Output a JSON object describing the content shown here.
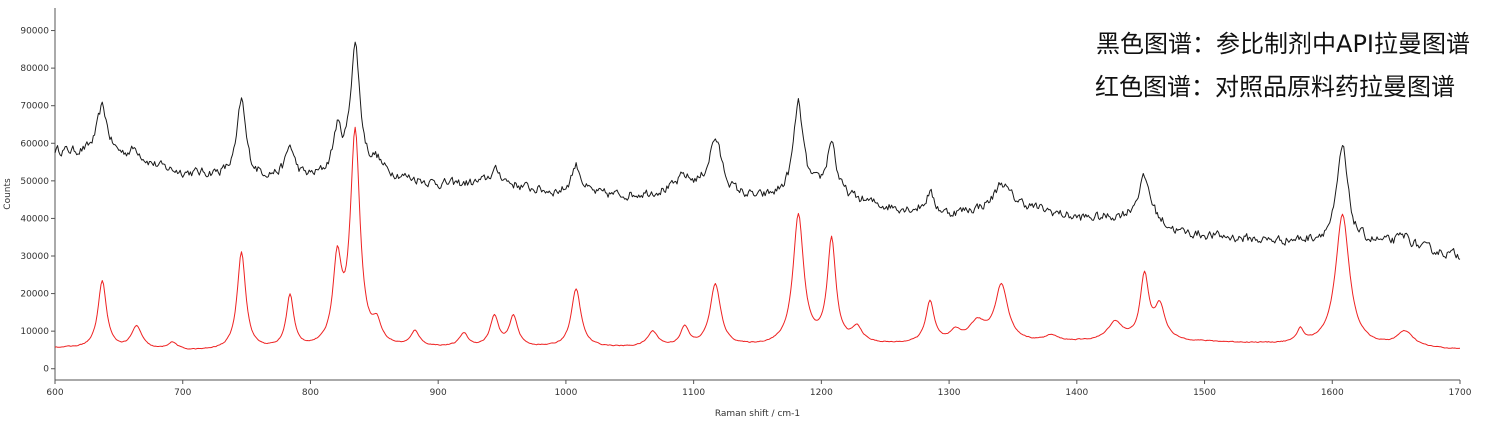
{
  "chart_data": {
    "type": "line",
    "xlabel": "Raman shift / cm-1",
    "ylabel": "Counts",
    "xlim": [
      600,
      1700
    ],
    "ylim": [
      -3000,
      96000
    ],
    "xticks": [
      "600",
      "700",
      "800",
      "900",
      "1000",
      "1100",
      "1200",
      "1300",
      "1400",
      "1500",
      "1600",
      "1700"
    ],
    "yticks": [
      "0",
      "10000",
      "20000",
      "30000",
      "40000",
      "50000",
      "60000",
      "70000",
      "80000",
      "90000"
    ],
    "grid": false,
    "legend_position": "top-right",
    "annotations": [
      "黑色图谱：参比制剂中API拉曼图谱",
      "红色图谱：对照品原料药拉曼图谱"
    ],
    "series": [
      {
        "color": "#1a1a1a",
        "noise": 2000,
        "baseline": [
          [
            600,
            58000
          ],
          [
            650,
            56000
          ],
          [
            700,
            52000
          ],
          [
            760,
            51000
          ],
          [
            800,
            50500
          ],
          [
            850,
            52000
          ],
          [
            900,
            49000
          ],
          [
            950,
            49000
          ],
          [
            1000,
            46000
          ],
          [
            1050,
            46000
          ],
          [
            1100,
            48000
          ],
          [
            1150,
            45000
          ],
          [
            1200,
            47000
          ],
          [
            1250,
            43000
          ],
          [
            1300,
            41000
          ],
          [
            1350,
            44000
          ],
          [
            1400,
            40000
          ],
          [
            1450,
            40000
          ],
          [
            1480,
            36000
          ],
          [
            1550,
            34000
          ],
          [
            1600,
            34000
          ],
          [
            1650,
            33000
          ],
          [
            1700,
            30000
          ]
        ],
        "peaks": [
          [
            637,
            13000,
            5
          ],
          [
            663,
            3000,
            6
          ],
          [
            746,
            20000,
            4
          ],
          [
            784,
            8000,
            4
          ],
          [
            821,
            11000,
            4
          ],
          [
            835,
            34000,
            4.5
          ],
          [
            852,
            2500,
            4
          ],
          [
            945,
            3500,
            6
          ],
          [
            1008,
            8000,
            5
          ],
          [
            1092,
            3000,
            5
          ],
          [
            1117,
            14000,
            6
          ],
          [
            1182,
            24000,
            4.5
          ],
          [
            1208,
            14000,
            4
          ],
          [
            1285,
            5000,
            4
          ],
          [
            1341,
            6000,
            6
          ],
          [
            1453,
            11000,
            6
          ],
          [
            1608,
            25000,
            5
          ],
          [
            1657,
            2500,
            6
          ]
        ]
      },
      {
        "color": "#ee2222",
        "noise": 200,
        "baseline": [
          [
            600,
            5500
          ],
          [
            700,
            4500
          ],
          [
            800,
            5000
          ],
          [
            900,
            5500
          ],
          [
            1000,
            5500
          ],
          [
            1100,
            5500
          ],
          [
            1200,
            6000
          ],
          [
            1300,
            6500
          ],
          [
            1400,
            7000
          ],
          [
            1500,
            7000
          ],
          [
            1600,
            6000
          ],
          [
            1700,
            5000
          ]
        ],
        "peaks": [
          [
            637,
            18000,
            4
          ],
          [
            664,
            6000,
            5
          ],
          [
            692,
            2000,
            5
          ],
          [
            746,
            26000,
            4
          ],
          [
            784,
            14000,
            3.5
          ],
          [
            821,
            22000,
            4
          ],
          [
            835,
            57000,
            4.5
          ],
          [
            852,
            5000,
            4
          ],
          [
            882,
            4000,
            4
          ],
          [
            920,
            3500,
            4
          ],
          [
            944,
            8000,
            4
          ],
          [
            959,
            8000,
            4
          ],
          [
            1008,
            15500,
            4.5
          ],
          [
            1068,
            4000,
            5
          ],
          [
            1093,
            5000,
            4
          ],
          [
            1117,
            16500,
            5
          ],
          [
            1182,
            34500,
            5
          ],
          [
            1208,
            27500,
            4
          ],
          [
            1228,
            4000,
            5
          ],
          [
            1285,
            11000,
            4
          ],
          [
            1305,
            2500,
            5
          ],
          [
            1322,
            5000,
            8
          ],
          [
            1341,
            15000,
            6
          ],
          [
            1380,
            1500,
            6
          ],
          [
            1430,
            5000,
            7
          ],
          [
            1453,
            17000,
            4
          ],
          [
            1465,
            9000,
            5
          ],
          [
            1575,
            3500,
            3
          ],
          [
            1608,
            35000,
            6.5
          ],
          [
            1657,
            4000,
            8
          ]
        ]
      }
    ]
  }
}
